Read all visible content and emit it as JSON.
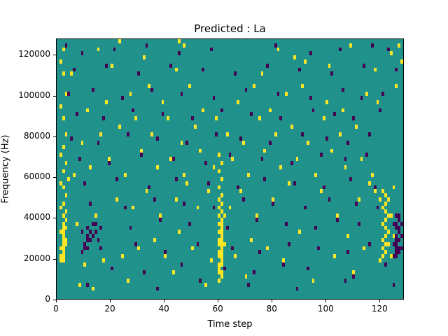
{
  "chart_data": {
    "type": "heatmap",
    "title": "Predicted : La",
    "xlabel": "Time step",
    "ylabel": "Frequency (Hz)",
    "x_range": [
      0,
      129
    ],
    "y_range": [
      0,
      128000
    ],
    "x_ticks": [
      {
        "value": 0,
        "label": "0"
      },
      {
        "value": 20,
        "label": "20"
      },
      {
        "value": 40,
        "label": "40"
      },
      {
        "value": 60,
        "label": "60"
      },
      {
        "value": 80,
        "label": "80"
      },
      {
        "value": 100,
        "label": "100"
      },
      {
        "value": 120,
        "label": "120"
      }
    ],
    "y_ticks": [
      {
        "value": 0,
        "label": "0"
      },
      {
        "value": 20000,
        "label": "20000"
      },
      {
        "value": 40000,
        "label": "40000"
      },
      {
        "value": 60000,
        "label": "60000"
      },
      {
        "value": 80000,
        "label": "80000"
      },
      {
        "value": 100000,
        "label": "100000"
      },
      {
        "value": 120000,
        "label": "120000"
      }
    ],
    "n_time_steps": 129,
    "n_freq_bins": 64,
    "freq_bin_hz": 2000,
    "grid": false,
    "legend": "none",
    "colors": {
      "background": "#21918c",
      "high": "#fde725",
      "low": "#440154",
      "figure_bg": "#ffffff",
      "text": "#000000"
    },
    "cells_high": [
      [
        60,
        4
      ],
      [
        61,
        5
      ],
      [
        60,
        6
      ],
      [
        61,
        6
      ],
      [
        60,
        7
      ],
      [
        61,
        8
      ],
      [
        60,
        8
      ],
      [
        61,
        9
      ],
      [
        60,
        10
      ],
      [
        61,
        10
      ],
      [
        60,
        11
      ],
      [
        61,
        11
      ],
      [
        61,
        12
      ],
      [
        60,
        13
      ],
      [
        61,
        13
      ],
      [
        60,
        14
      ],
      [
        61,
        14
      ],
      [
        61,
        15
      ],
      [
        60,
        16
      ],
      [
        61,
        16
      ],
      [
        61,
        17
      ],
      [
        60,
        18
      ],
      [
        61,
        18
      ],
      [
        61,
        19
      ],
      [
        60,
        20
      ],
      [
        61,
        21
      ],
      [
        60,
        22
      ],
      [
        61,
        23
      ],
      [
        60,
        24
      ],
      [
        61,
        25
      ],
      [
        62,
        13
      ],
      [
        62,
        20
      ],
      [
        60,
        27
      ],
      [
        61,
        29
      ],
      [
        60,
        31
      ],
      [
        61,
        33
      ],
      [
        60,
        35
      ],
      [
        1,
        9
      ],
      [
        2,
        9
      ],
      [
        1,
        10
      ],
      [
        2,
        10
      ],
      [
        2,
        11
      ],
      [
        1,
        12
      ],
      [
        2,
        12
      ],
      [
        2,
        13
      ],
      [
        3,
        13
      ],
      [
        2,
        14
      ],
      [
        3,
        14
      ],
      [
        2,
        15
      ],
      [
        1,
        16
      ],
      [
        2,
        16
      ],
      [
        2,
        17
      ],
      [
        3,
        17
      ],
      [
        2,
        18
      ],
      [
        3,
        19
      ],
      [
        2,
        20
      ],
      [
        3,
        21
      ],
      [
        1,
        22
      ],
      [
        2,
        23
      ],
      [
        3,
        25
      ],
      [
        2,
        27
      ],
      [
        1,
        28
      ],
      [
        4,
        29
      ],
      [
        2,
        31
      ],
      [
        3,
        33
      ],
      [
        1,
        35
      ],
      [
        2,
        37
      ],
      [
        3,
        40
      ],
      [
        2,
        44
      ],
      [
        1,
        47
      ],
      [
        3,
        50
      ],
      [
        2,
        55
      ],
      [
        1,
        58
      ],
      [
        2,
        61
      ],
      [
        120,
        9
      ],
      [
        121,
        10
      ],
      [
        122,
        11
      ],
      [
        121,
        12
      ],
      [
        122,
        13
      ],
      [
        123,
        13
      ],
      [
        121,
        14
      ],
      [
        122,
        15
      ],
      [
        123,
        16
      ],
      [
        122,
        17
      ],
      [
        121,
        18
      ],
      [
        122,
        19
      ],
      [
        123,
        20
      ],
      [
        122,
        21
      ],
      [
        121,
        22
      ],
      [
        122,
        23
      ],
      [
        123,
        24
      ],
      [
        122,
        25
      ],
      [
        121,
        26
      ],
      [
        124,
        20
      ],
      [
        125,
        15
      ],
      [
        120,
        24
      ],
      [
        119,
        22
      ],
      [
        118,
        26
      ],
      [
        125,
        27
      ],
      [
        124,
        10
      ],
      [
        128,
        58
      ],
      [
        127,
        62
      ],
      [
        8,
        3
      ],
      [
        13,
        2
      ],
      [
        26,
        4
      ],
      [
        43,
        6
      ],
      [
        55,
        3
      ],
      [
        70,
        5
      ],
      [
        95,
        4
      ],
      [
        110,
        6
      ],
      [
        10,
        8
      ],
      [
        17,
        9
      ],
      [
        24,
        10
      ],
      [
        30,
        12
      ],
      [
        36,
        14
      ],
      [
        40,
        10
      ],
      [
        45,
        16
      ],
      [
        50,
        12
      ],
      [
        57,
        9
      ],
      [
        66,
        10
      ],
      [
        72,
        14
      ],
      [
        78,
        12
      ],
      [
        84,
        9
      ],
      [
        90,
        16
      ],
      [
        97,
        12
      ],
      [
        103,
        10
      ],
      [
        108,
        15
      ],
      [
        114,
        12
      ],
      [
        7,
        18
      ],
      [
        14,
        20
      ],
      [
        22,
        24
      ],
      [
        28,
        22
      ],
      [
        33,
        26
      ],
      [
        38,
        20
      ],
      [
        44,
        24
      ],
      [
        48,
        28
      ],
      [
        52,
        22
      ],
      [
        56,
        26
      ],
      [
        64,
        22
      ],
      [
        68,
        26
      ],
      [
        74,
        20
      ],
      [
        80,
        24
      ],
      [
        86,
        28
      ],
      [
        92,
        22
      ],
      [
        98,
        26
      ],
      [
        104,
        20
      ],
      [
        112,
        24
      ],
      [
        116,
        28
      ],
      [
        6,
        30
      ],
      [
        12,
        32
      ],
      [
        19,
        34
      ],
      [
        25,
        30
      ],
      [
        31,
        36
      ],
      [
        37,
        32
      ],
      [
        42,
        34
      ],
      [
        47,
        30
      ],
      [
        53,
        36
      ],
      [
        58,
        32
      ],
      [
        65,
        34
      ],
      [
        71,
        30
      ],
      [
        77,
        36
      ],
      [
        83,
        32
      ],
      [
        89,
        34
      ],
      [
        96,
        30
      ],
      [
        102,
        36
      ],
      [
        107,
        32
      ],
      [
        113,
        34
      ],
      [
        117,
        30
      ],
      [
        9,
        38
      ],
      [
        16,
        40
      ],
      [
        23,
        42
      ],
      [
        29,
        44
      ],
      [
        35,
        40
      ],
      [
        41,
        44
      ],
      [
        46,
        38
      ],
      [
        51,
        42
      ],
      [
        59,
        44
      ],
      [
        63,
        40
      ],
      [
        69,
        38
      ],
      [
        75,
        44
      ],
      [
        81,
        40
      ],
      [
        87,
        42
      ],
      [
        93,
        38
      ],
      [
        99,
        44
      ],
      [
        105,
        40
      ],
      [
        111,
        42
      ],
      [
        11,
        46
      ],
      [
        18,
        48
      ],
      [
        27,
        50
      ],
      [
        34,
        52
      ],
      [
        39,
        48
      ],
      [
        49,
        52
      ],
      [
        54,
        46
      ],
      [
        67,
        48
      ],
      [
        73,
        52
      ],
      [
        79,
        46
      ],
      [
        85,
        50
      ],
      [
        91,
        52
      ],
      [
        100,
        48
      ],
      [
        106,
        46
      ],
      [
        115,
        50
      ],
      [
        119,
        48
      ],
      [
        126,
        52
      ],
      [
        5,
        55
      ],
      [
        20,
        57
      ],
      [
        32,
        59
      ],
      [
        44,
        56
      ],
      [
        76,
        55
      ],
      [
        88,
        59
      ],
      [
        101,
        57
      ],
      [
        118,
        56
      ],
      [
        15,
        61
      ],
      [
        47,
        62
      ],
      [
        82,
        61
      ],
      [
        109,
        62
      ],
      [
        124,
        60
      ],
      [
        23,
        63
      ],
      [
        45,
        63
      ],
      [
        92,
        58
      ]
    ],
    "cells_low": [
      [
        125,
        10
      ],
      [
        126,
        10
      ],
      [
        126,
        11
      ],
      [
        127,
        11
      ],
      [
        127,
        12
      ],
      [
        126,
        12
      ],
      [
        125,
        13
      ],
      [
        126,
        13
      ],
      [
        127,
        14
      ],
      [
        126,
        14
      ],
      [
        126,
        15
      ],
      [
        127,
        16
      ],
      [
        126,
        17
      ],
      [
        127,
        17
      ],
      [
        126,
        18
      ],
      [
        127,
        19
      ],
      [
        126,
        20
      ],
      [
        127,
        20
      ],
      [
        125,
        18
      ],
      [
        128,
        15
      ],
      [
        128,
        12
      ],
      [
        128,
        18
      ],
      [
        9,
        11
      ],
      [
        10,
        12
      ],
      [
        11,
        12
      ],
      [
        10,
        13
      ],
      [
        11,
        14
      ],
      [
        12,
        14
      ],
      [
        11,
        15
      ],
      [
        13,
        15
      ],
      [
        12,
        16
      ],
      [
        11,
        17
      ],
      [
        14,
        16
      ],
      [
        16,
        17
      ],
      [
        13,
        18
      ],
      [
        15,
        14
      ],
      [
        9,
        16
      ],
      [
        3,
        62
      ],
      [
        9,
        60
      ],
      [
        21,
        61
      ],
      [
        33,
        62
      ],
      [
        45,
        60
      ],
      [
        57,
        61
      ],
      [
        81,
        62
      ],
      [
        94,
        60
      ],
      [
        105,
        61
      ],
      [
        117,
        62
      ],
      [
        123,
        61
      ],
      [
        6,
        56
      ],
      [
        18,
        57
      ],
      [
        30,
        55
      ],
      [
        42,
        57
      ],
      [
        54,
        56
      ],
      [
        66,
        55
      ],
      [
        78,
        57
      ],
      [
        90,
        56
      ],
      [
        102,
        55
      ],
      [
        114,
        57
      ],
      [
        126,
        56
      ],
      [
        4,
        50
      ],
      [
        13,
        51
      ],
      [
        24,
        49
      ],
      [
        35,
        51
      ],
      [
        46,
        50
      ],
      [
        58,
        49
      ],
      [
        70,
        51
      ],
      [
        82,
        50
      ],
      [
        94,
        49
      ],
      [
        106,
        51
      ],
      [
        113,
        49
      ],
      [
        121,
        50
      ],
      [
        7,
        45
      ],
      [
        17,
        44
      ],
      [
        28,
        46
      ],
      [
        39,
        45
      ],
      [
        50,
        44
      ],
      [
        61,
        46
      ],
      [
        72,
        45
      ],
      [
        83,
        44
      ],
      [
        95,
        46
      ],
      [
        103,
        45
      ],
      [
        110,
        44
      ],
      [
        120,
        46
      ],
      [
        5,
        39
      ],
      [
        15,
        38
      ],
      [
        26,
        40
      ],
      [
        37,
        39
      ],
      [
        48,
        38
      ],
      [
        59,
        40
      ],
      [
        68,
        39
      ],
      [
        79,
        38
      ],
      [
        91,
        40
      ],
      [
        100,
        39
      ],
      [
        108,
        38
      ],
      [
        116,
        40
      ],
      [
        8,
        34
      ],
      [
        19,
        33
      ],
      [
        31,
        35
      ],
      [
        43,
        34
      ],
      [
        55,
        33
      ],
      [
        64,
        35
      ],
      [
        76,
        34
      ],
      [
        87,
        33
      ],
      [
        98,
        35
      ],
      [
        107,
        34
      ],
      [
        115,
        35
      ],
      [
        10,
        28
      ],
      [
        22,
        29
      ],
      [
        34,
        27
      ],
      [
        44,
        29
      ],
      [
        56,
        28
      ],
      [
        67,
        27
      ],
      [
        77,
        29
      ],
      [
        88,
        28
      ],
      [
        99,
        27
      ],
      [
        109,
        29
      ],
      [
        118,
        27
      ],
      [
        12,
        23
      ],
      [
        25,
        22
      ],
      [
        36,
        24
      ],
      [
        47,
        23
      ],
      [
        58,
        22
      ],
      [
        69,
        24
      ],
      [
        80,
        23
      ],
      [
        92,
        22
      ],
      [
        101,
        24
      ],
      [
        111,
        23
      ],
      [
        119,
        22
      ],
      [
        14,
        18
      ],
      [
        27,
        17
      ],
      [
        38,
        19
      ],
      [
        49,
        18
      ],
      [
        63,
        17
      ],
      [
        74,
        19
      ],
      [
        85,
        18
      ],
      [
        96,
        17
      ],
      [
        104,
        19
      ],
      [
        112,
        18
      ],
      [
        16,
        12
      ],
      [
        29,
        13
      ],
      [
        40,
        11
      ],
      [
        52,
        13
      ],
      [
        65,
        12
      ],
      [
        75,
        11
      ],
      [
        86,
        13
      ],
      [
        97,
        12
      ],
      [
        108,
        11
      ],
      [
        116,
        13
      ],
      [
        20,
        7
      ],
      [
        32,
        6
      ],
      [
        46,
        8
      ],
      [
        62,
        7
      ],
      [
        73,
        6
      ],
      [
        84,
        8
      ],
      [
        93,
        7
      ],
      [
        110,
        5
      ],
      [
        122,
        8
      ],
      [
        11,
        3
      ],
      [
        37,
        2
      ],
      [
        53,
        4
      ],
      [
        71,
        3
      ],
      [
        89,
        2
      ],
      [
        107,
        4
      ],
      [
        125,
        3
      ]
    ]
  }
}
